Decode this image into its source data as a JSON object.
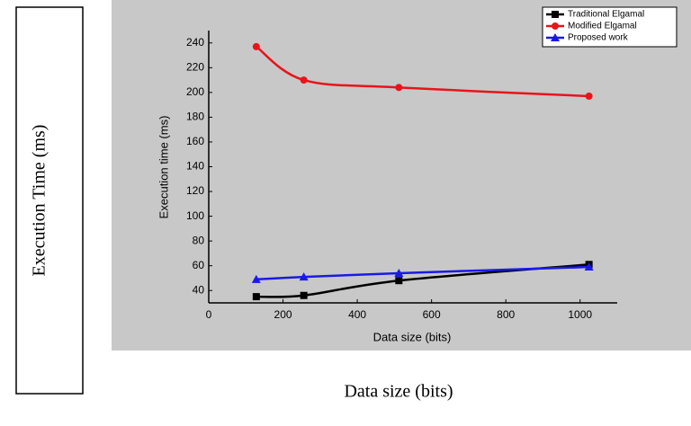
{
  "figure": {
    "y_caption": "Execution Time (ms)",
    "x_caption": "Data size (bits)"
  },
  "chart_data": {
    "type": "line",
    "x_label": "Data size (bits)",
    "y_label": "Execution time (ms)",
    "x": [
      128,
      256,
      512,
      1024
    ],
    "series": [
      {
        "name": "Traditional Elgamal",
        "color": "#000000",
        "marker": "square",
        "values": [
          35,
          36,
          48,
          61
        ]
      },
      {
        "name": "Modified Elgamal",
        "color": "#e8141a",
        "marker": "circle",
        "values": [
          237,
          210,
          204,
          197
        ]
      },
      {
        "name": "Proposed work",
        "color": "#1a1ae6",
        "marker": "triangle",
        "values": [
          49,
          51,
          54,
          59
        ]
      }
    ],
    "xlim": [
      0,
      1100
    ],
    "ylim": [
      30,
      250
    ],
    "xticks": [
      0,
      200,
      400,
      600,
      800,
      1000
    ],
    "yticks": [
      40,
      60,
      80,
      100,
      120,
      140,
      160,
      180,
      200,
      220,
      240
    ],
    "legend": "upper-right"
  }
}
